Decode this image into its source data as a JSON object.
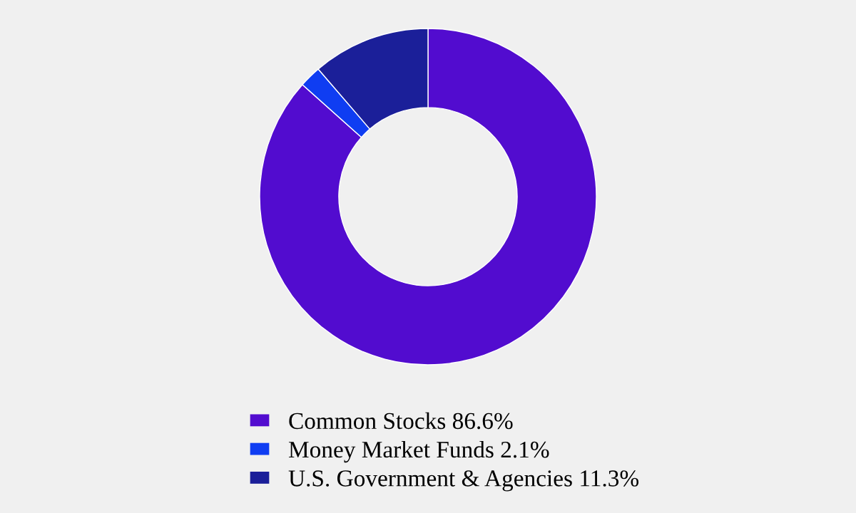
{
  "chart_data": {
    "type": "donut",
    "categories": [
      "Common Stocks",
      "Money Market Funds",
      "U.S. Government & Agencies"
    ],
    "values": [
      86.6,
      2.1,
      11.3
    ],
    "value_labels": [
      "86.6%",
      "2.1%",
      "11.3%"
    ],
    "colors": [
      "#520ccf",
      "#0f3df2",
      "#1b1f99"
    ],
    "legend": "bottom"
  }
}
